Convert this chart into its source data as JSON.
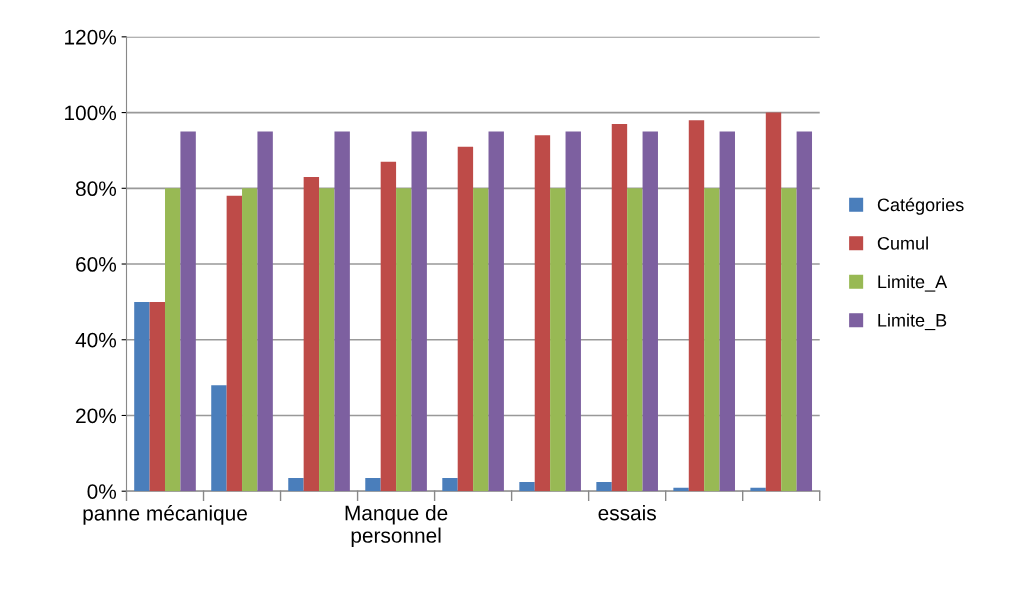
{
  "chart_data": {
    "type": "bar",
    "categories": [
      "panne mécanique",
      null,
      null,
      "Manque de\npersonnel",
      null,
      null,
      "essais",
      null,
      null
    ],
    "series": [
      {
        "name": "Catégories",
        "color": "#4a7ebb",
        "values": [
          50,
          28,
          3.5,
          3.5,
          3.5,
          2.4,
          2.4,
          0.9,
          0.9
        ]
      },
      {
        "name": "Cumul",
        "color": "#be4b48",
        "values": [
          50,
          78,
          83,
          87,
          91,
          94,
          97,
          98,
          100
        ]
      },
      {
        "name": "Limite_A",
        "color": "#98b954",
        "values": [
          80,
          80,
          80,
          80,
          80,
          80,
          80,
          80,
          80
        ]
      },
      {
        "name": "Limite_B",
        "color": "#7d60a0",
        "values": [
          95,
          95,
          95,
          95,
          95,
          95,
          95,
          95,
          95
        ]
      }
    ],
    "ylim": [
      0,
      120
    ],
    "yticks": [
      {
        "value": 0,
        "label": "0%"
      },
      {
        "value": 20,
        "label": "20%"
      },
      {
        "value": 40,
        "label": "40%"
      },
      {
        "value": 60,
        "label": "60%"
      },
      {
        "value": 80,
        "label": "80%"
      },
      {
        "value": 100,
        "label": "100%"
      },
      {
        "value": 120,
        "label": "120%"
      }
    ],
    "grid": "y",
    "legend": "right"
  }
}
